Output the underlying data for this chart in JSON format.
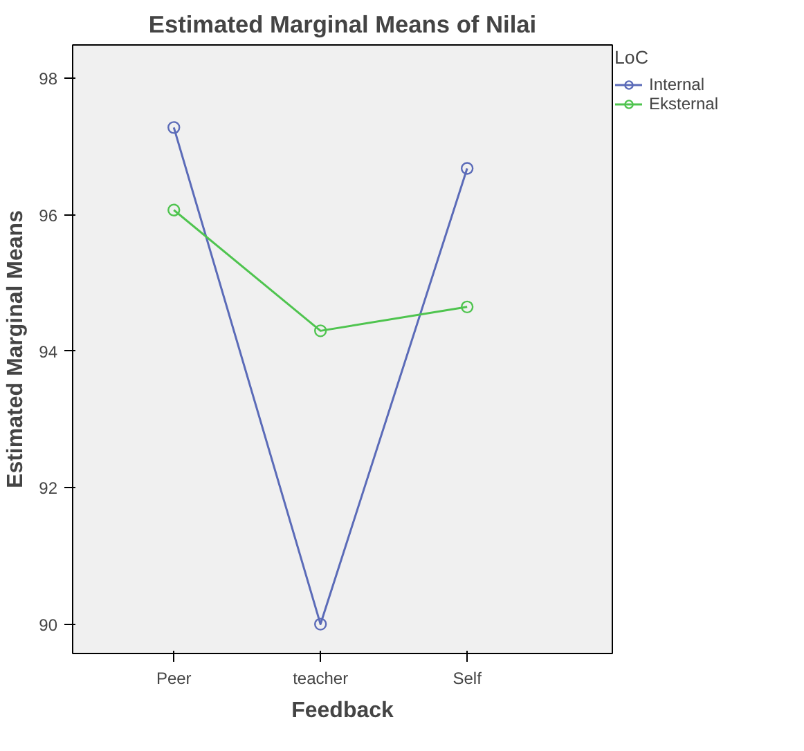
{
  "chart_data": {
    "type": "line",
    "title": "Estimated Marginal Means of Nilai",
    "xlabel": "Feedback",
    "ylabel": "Estimated Marginal Means",
    "legend_title": "LoC",
    "categories": [
      "Peer",
      "teacher",
      "Self"
    ],
    "series": [
      {
        "name": "Internal",
        "color": "#5b6bb8",
        "values": [
          97.28,
          90.0,
          96.68
        ]
      },
      {
        "name": "Eksternal",
        "color": "#4fc44f",
        "values": [
          96.07,
          94.3,
          94.65
        ]
      }
    ],
    "ylim": [
      89.57,
      98.49
    ],
    "yticks": [
      90,
      92,
      94,
      96,
      98
    ],
    "grid": false,
    "legend": "top right",
    "marker": "circle",
    "line_style": "solid"
  }
}
